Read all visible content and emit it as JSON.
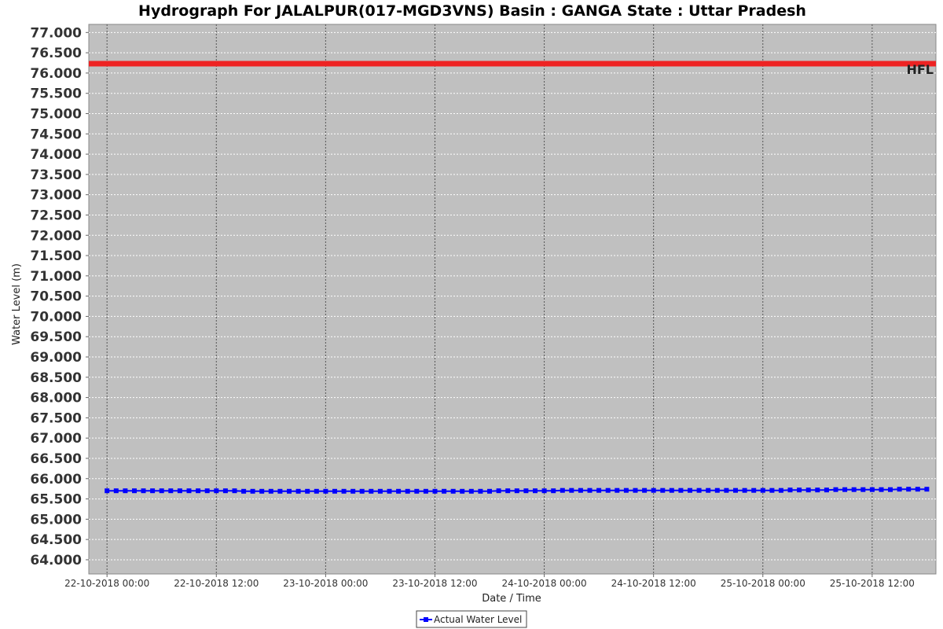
{
  "colors": {
    "plot_background": "#c0c0c0",
    "series": "#0000ff",
    "hfl_line": "#ee2222",
    "grid": "#ffffff",
    "x_grid": "#555555"
  },
  "chart_data": {
    "type": "line",
    "title": "Hydrograph For JALALPUR(017-MGD3VNS) Basin : GANGA State : Uttar Pradesh",
    "xlabel": "Date / Time",
    "ylabel": "Water Level (m)",
    "ylim": [
      63.65,
      77.2
    ],
    "y_ticks": [
      "77.000",
      "76.500",
      "76.000",
      "75.500",
      "75.000",
      "74.500",
      "74.000",
      "73.500",
      "73.000",
      "72.500",
      "72.000",
      "71.500",
      "71.000",
      "70.500",
      "70.000",
      "69.500",
      "69.000",
      "68.500",
      "68.000",
      "67.500",
      "67.000",
      "66.500",
      "66.000",
      "65.500",
      "65.000",
      "64.500",
      "64.000"
    ],
    "xlim": [
      "2018-10-21 22:00",
      "2018-10-25 19:00"
    ],
    "x_ticks": [
      {
        "at": "2018-10-22 00:00",
        "label": "22-10-2018 00:00"
      },
      {
        "at": "2018-10-22 12:00",
        "label": "22-10-2018 12:00"
      },
      {
        "at": "2018-10-23 00:00",
        "label": "23-10-2018 00:00"
      },
      {
        "at": "2018-10-23 12:00",
        "label": "23-10-2018 12:00"
      },
      {
        "at": "2018-10-24 00:00",
        "label": "24-10-2018 00:00"
      },
      {
        "at": "2018-10-24 12:00",
        "label": "24-10-2018 12:00"
      },
      {
        "at": "2018-10-25 00:00",
        "label": "25-10-2018 00:00"
      },
      {
        "at": "2018-10-25 12:00",
        "label": "25-10-2018 12:00"
      }
    ],
    "grid": true,
    "legend_position": "bottom-center",
    "reference_lines": [
      {
        "label": "HFL",
        "value": 76.23
      }
    ],
    "series": [
      {
        "name": "Actual Water Level",
        "x": [
          "2018-10-22 00:00",
          "2018-10-22 01:00",
          "2018-10-22 02:00",
          "2018-10-22 03:00",
          "2018-10-22 04:00",
          "2018-10-22 05:00",
          "2018-10-22 06:00",
          "2018-10-22 07:00",
          "2018-10-22 08:00",
          "2018-10-22 09:00",
          "2018-10-22 10:00",
          "2018-10-22 11:00",
          "2018-10-22 12:00",
          "2018-10-22 13:00",
          "2018-10-22 14:00",
          "2018-10-22 15:00",
          "2018-10-22 16:00",
          "2018-10-22 17:00",
          "2018-10-22 18:00",
          "2018-10-22 19:00",
          "2018-10-22 20:00",
          "2018-10-22 21:00",
          "2018-10-22 22:00",
          "2018-10-22 23:00",
          "2018-10-23 00:00",
          "2018-10-23 01:00",
          "2018-10-23 02:00",
          "2018-10-23 03:00",
          "2018-10-23 04:00",
          "2018-10-23 05:00",
          "2018-10-23 06:00",
          "2018-10-23 07:00",
          "2018-10-23 08:00",
          "2018-10-23 09:00",
          "2018-10-23 10:00",
          "2018-10-23 11:00",
          "2018-10-23 12:00",
          "2018-10-23 13:00",
          "2018-10-23 14:00",
          "2018-10-23 15:00",
          "2018-10-23 16:00",
          "2018-10-23 17:00",
          "2018-10-23 18:00",
          "2018-10-23 19:00",
          "2018-10-23 20:00",
          "2018-10-23 21:00",
          "2018-10-23 22:00",
          "2018-10-23 23:00",
          "2018-10-24 00:00",
          "2018-10-24 01:00",
          "2018-10-24 02:00",
          "2018-10-24 03:00",
          "2018-10-24 04:00",
          "2018-10-24 05:00",
          "2018-10-24 06:00",
          "2018-10-24 07:00",
          "2018-10-24 08:00",
          "2018-10-24 09:00",
          "2018-10-24 10:00",
          "2018-10-24 11:00",
          "2018-10-24 12:00",
          "2018-10-24 13:00",
          "2018-10-24 14:00",
          "2018-10-24 15:00",
          "2018-10-24 16:00",
          "2018-10-24 17:00",
          "2018-10-24 18:00",
          "2018-10-24 19:00",
          "2018-10-24 20:00",
          "2018-10-24 21:00",
          "2018-10-24 22:00",
          "2018-10-24 23:00",
          "2018-10-25 00:00",
          "2018-10-25 01:00",
          "2018-10-25 02:00",
          "2018-10-25 03:00",
          "2018-10-25 04:00",
          "2018-10-25 05:00",
          "2018-10-25 06:00",
          "2018-10-25 07:00",
          "2018-10-25 08:00",
          "2018-10-25 09:00",
          "2018-10-25 10:00",
          "2018-10-25 11:00",
          "2018-10-25 12:00",
          "2018-10-25 13:00",
          "2018-10-25 14:00",
          "2018-10-25 15:00",
          "2018-10-25 16:00",
          "2018-10-25 17:00",
          "2018-10-25 18:00"
        ],
        "y": [
          65.7,
          65.7,
          65.7,
          65.7,
          65.7,
          65.7,
          65.7,
          65.7,
          65.7,
          65.7,
          65.7,
          65.7,
          65.7,
          65.7,
          65.7,
          65.69,
          65.69,
          65.69,
          65.69,
          65.69,
          65.69,
          65.69,
          65.69,
          65.69,
          65.69,
          65.69,
          65.69,
          65.69,
          65.69,
          65.69,
          65.69,
          65.69,
          65.69,
          65.69,
          65.69,
          65.69,
          65.69,
          65.69,
          65.69,
          65.69,
          65.69,
          65.69,
          65.69,
          65.7,
          65.7,
          65.7,
          65.7,
          65.7,
          65.7,
          65.7,
          65.71,
          65.71,
          65.71,
          65.71,
          65.71,
          65.71,
          65.71,
          65.71,
          65.71,
          65.71,
          65.71,
          65.71,
          65.71,
          65.71,
          65.71,
          65.71,
          65.71,
          65.71,
          65.71,
          65.71,
          65.71,
          65.71,
          65.71,
          65.71,
          65.71,
          65.72,
          65.72,
          65.72,
          65.72,
          65.72,
          65.73,
          65.73,
          65.73,
          65.73,
          65.73,
          65.73,
          65.73,
          65.74,
          65.74,
          65.74,
          65.74
        ]
      }
    ]
  }
}
